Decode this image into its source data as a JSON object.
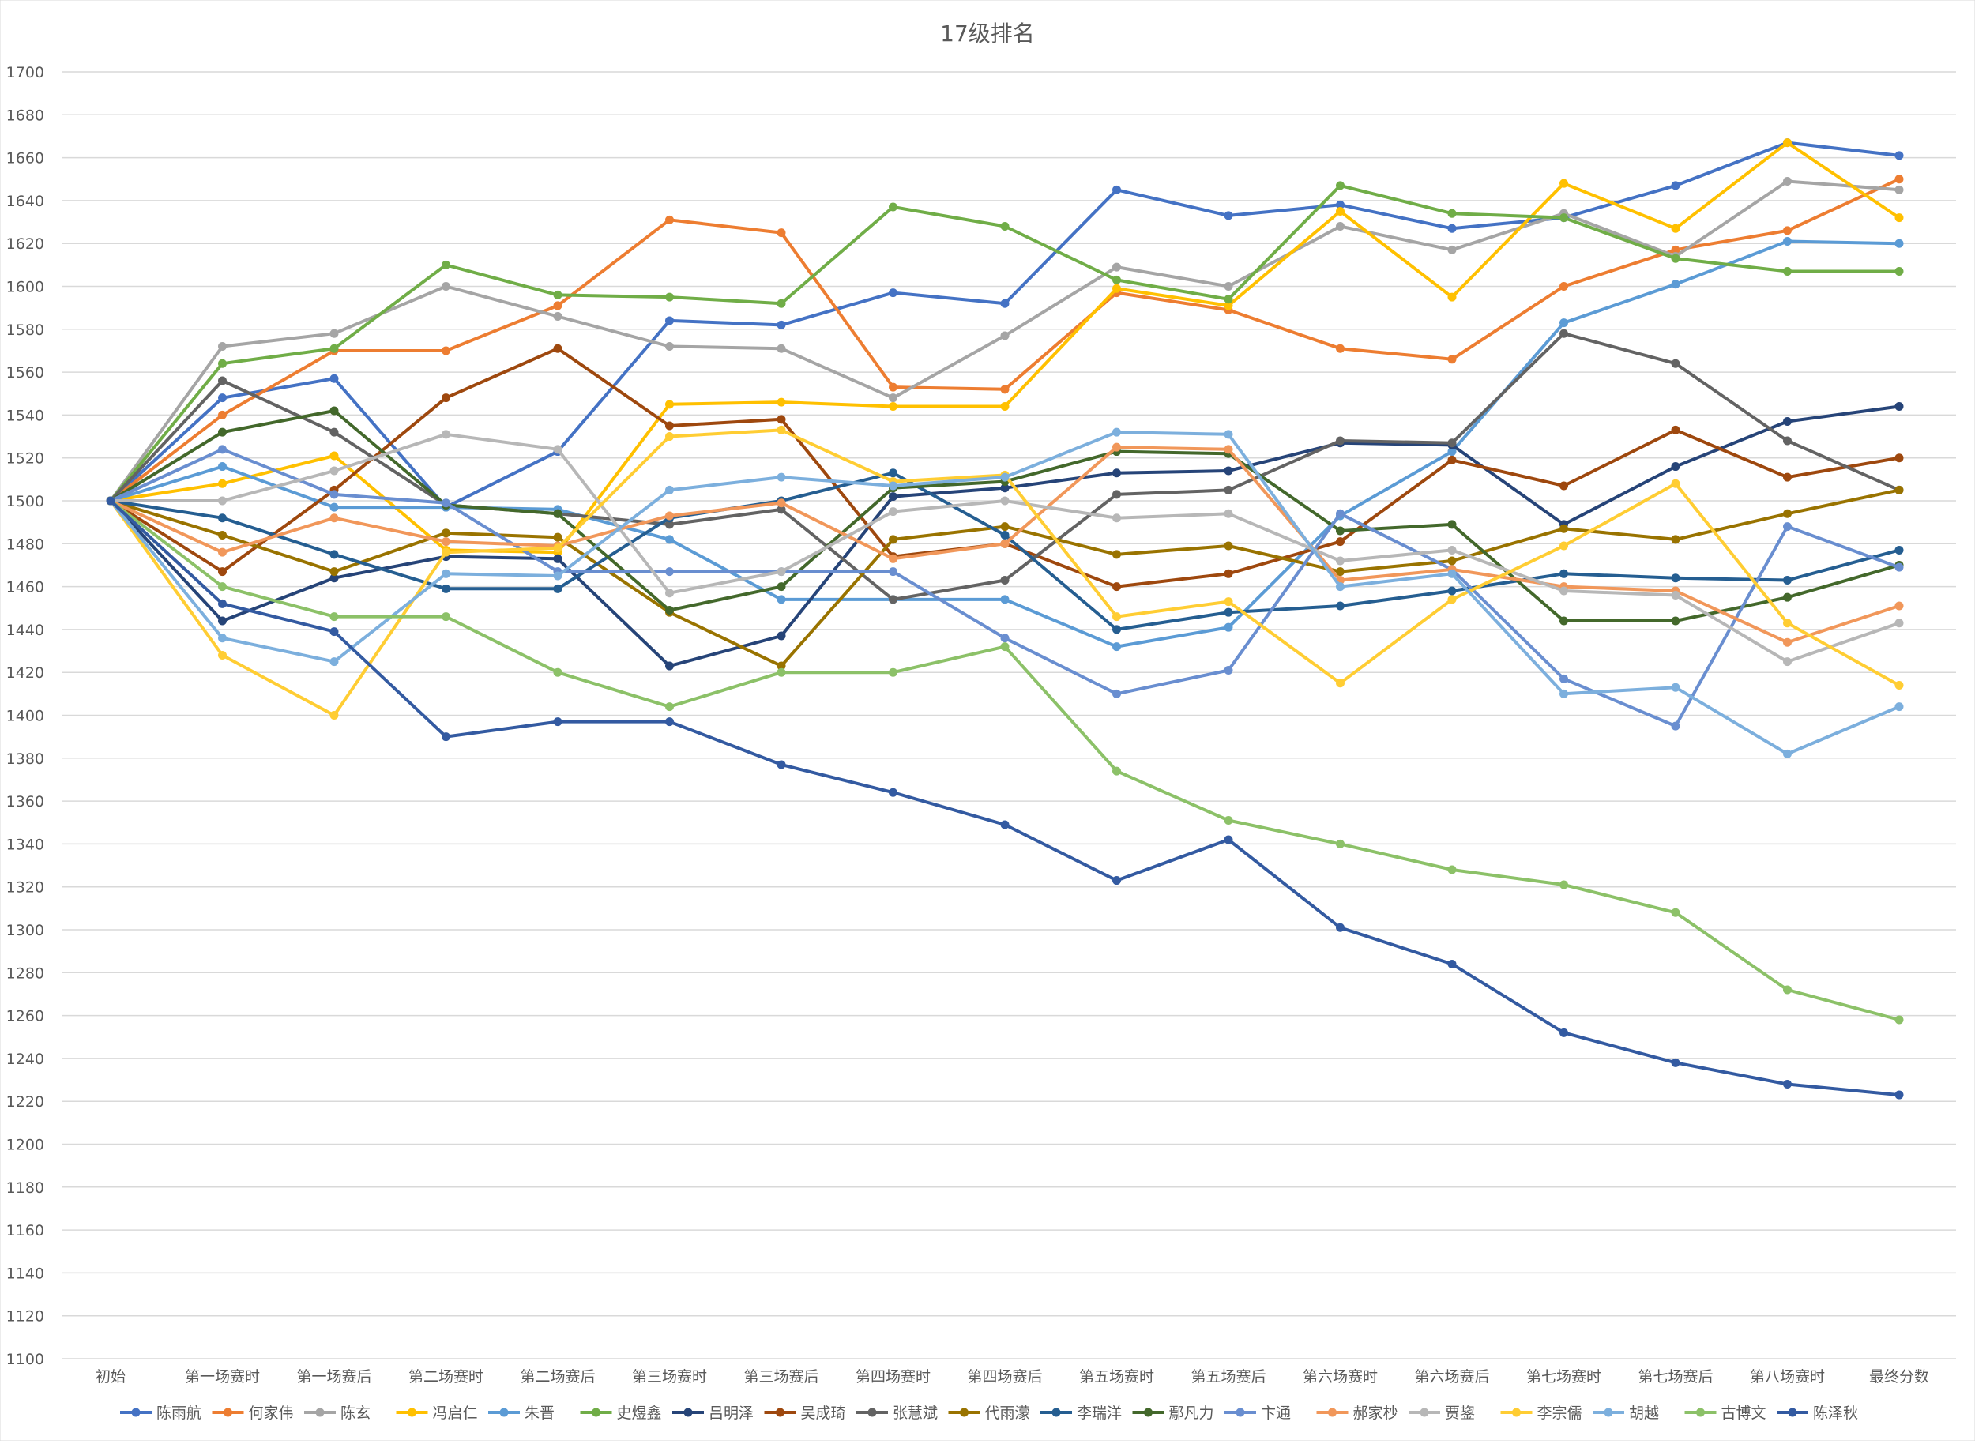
{
  "chart_data": {
    "type": "line",
    "title": "17级排名",
    "xlabel": "",
    "ylabel": "",
    "ylim": [
      1100,
      1700
    ],
    "ytick_step": 20,
    "grid": true,
    "legend_position": "bottom",
    "categories": [
      "初始",
      "第一场赛时",
      "第一场赛后",
      "第二场赛时",
      "第二场赛后",
      "第三场赛时",
      "第三场赛后",
      "第四场赛时",
      "第四场赛后",
      "第五场赛时",
      "第五场赛后",
      "第六场赛时",
      "第六场赛后",
      "第七场赛时",
      "第七场赛后",
      "第八场赛时",
      "最终分数"
    ],
    "series": [
      {
        "name": "陈雨航",
        "color": "#4472C4",
        "values": [
          1500,
          1548,
          1557,
          1497,
          1523,
          1584,
          1582,
          1597,
          1592,
          1645,
          1633,
          1638,
          1627,
          1632,
          1647,
          1667,
          1661
        ]
      },
      {
        "name": "何家伟",
        "color": "#ED7D31",
        "values": [
          1500,
          1540,
          1570,
          1570,
          1591,
          1631,
          1625,
          1553,
          1552,
          1597,
          1589,
          1571,
          1566,
          1600,
          1617,
          1626,
          1650
        ]
      },
      {
        "name": "陈玄",
        "color": "#A5A5A5",
        "values": [
          1500,
          1572,
          1578,
          1600,
          1586,
          1572,
          1571,
          1548,
          1577,
          1609,
          1600,
          1628,
          1617,
          1634,
          1614,
          1649,
          1645
        ]
      },
      {
        "name": "冯启仁",
        "color": "#FFC000",
        "values": [
          1500,
          1508,
          1521,
          1477,
          1476,
          1545,
          1546,
          1544,
          1544,
          1599,
          1591,
          1635,
          1595,
          1648,
          1627,
          1667,
          1632
        ]
      },
      {
        "name": "朱晋",
        "color": "#5B9BD5",
        "values": [
          1500,
          1516,
          1497,
          1497,
          1496,
          1482,
          1454,
          1454,
          1454,
          1432,
          1441,
          1493,
          1523,
          1583,
          1601,
          1621,
          1620
        ]
      },
      {
        "name": "史煜鑫",
        "color": "#70AD47",
        "values": [
          1500,
          1564,
          1571,
          1610,
          1596,
          1595,
          1592,
          1637,
          1628,
          1603,
          1594,
          1647,
          1634,
          1632,
          1613,
          1607,
          1607
        ]
      },
      {
        "name": "吕明泽",
        "color": "#264478",
        "values": [
          1500,
          1444,
          1464,
          1474,
          1473,
          1423,
          1437,
          1502,
          1506,
          1513,
          1514,
          1527,
          1526,
          1489,
          1516,
          1537,
          1544
        ]
      },
      {
        "name": "吴成琦",
        "color": "#9E480E",
        "values": [
          1500,
          1467,
          1505,
          1548,
          1571,
          1535,
          1538,
          1474,
          1480,
          1460,
          1466,
          1481,
          1519,
          1507,
          1533,
          1511,
          1520
        ]
      },
      {
        "name": "张慧斌",
        "color": "#636363",
        "values": [
          1500,
          1556,
          1532,
          1498,
          1494,
          1489,
          1496,
          1454,
          1463,
          1503,
          1505,
          1528,
          1527,
          1578,
          1564,
          1528,
          1505
        ]
      },
      {
        "name": "代雨濛",
        "color": "#997300",
        "values": [
          1500,
          1484,
          1467,
          1485,
          1483,
          1448,
          1423,
          1482,
          1488,
          1475,
          1479,
          1467,
          1472,
          1487,
          1482,
          1494,
          1505
        ]
      },
      {
        "name": "李瑞洋",
        "color": "#255E91",
        "values": [
          1500,
          1492,
          1475,
          1459,
          1459,
          1492,
          1500,
          1513,
          1484,
          1440,
          1448,
          1451,
          1458,
          1466,
          1464,
          1463,
          1477
        ]
      },
      {
        "name": "鄢凡力",
        "color": "#43682B",
        "values": [
          1500,
          1532,
          1542,
          1498,
          1494,
          1449,
          1460,
          1506,
          1509,
          1523,
          1522,
          1486,
          1489,
          1444,
          1444,
          1455,
          1470
        ]
      },
      {
        "name": "卞通",
        "color": "#698ED0",
        "values": [
          1500,
          1524,
          1503,
          1499,
          1467,
          1467,
          1467,
          1467,
          1436,
          1410,
          1421,
          1494,
          1468,
          1417,
          1395,
          1488,
          1469
        ]
      },
      {
        "name": "郝家杪",
        "color": "#F1975A",
        "values": [
          1500,
          1476,
          1492,
          1481,
          1479,
          1493,
          1499,
          1473,
          1480,
          1525,
          1524,
          1463,
          1468,
          1460,
          1458,
          1434,
          1451
        ]
      },
      {
        "name": "贾鋆",
        "color": "#B7B7B7",
        "values": [
          1500,
          1500,
          1514,
          1531,
          1524,
          1457,
          1467,
          1495,
          1500,
          1492,
          1494,
          1472,
          1477,
          1458,
          1456,
          1425,
          1443
        ]
      },
      {
        "name": "李宗儒",
        "color": "#FFCD33",
        "values": [
          1500,
          1428,
          1400,
          1476,
          1478,
          1530,
          1533,
          1509,
          1512,
          1446,
          1453,
          1415,
          1454,
          1479,
          1508,
          1443,
          1414
        ]
      },
      {
        "name": "胡越",
        "color": "#7CAFDD",
        "values": [
          1500,
          1436,
          1425,
          1466,
          1465,
          1505,
          1511,
          1507,
          1511,
          1532,
          1531,
          1460,
          1466,
          1410,
          1413,
          1382,
          1404
        ]
      },
      {
        "name": "古博文",
        "color": "#8CC168",
        "values": [
          1500,
          1460,
          1446,
          1446,
          1420,
          1404,
          1420,
          1420,
          1432,
          1374,
          1351,
          1340,
          1328,
          1321,
          1308,
          1272,
          1258
        ]
      },
      {
        "name": "陈泽秋",
        "color": "#335AA1",
        "values": [
          1500,
          1452,
          1439,
          1390,
          1397,
          1397,
          1377,
          1364,
          1349,
          1323,
          1342,
          1301,
          1284,
          1252,
          1238,
          1228,
          1223
        ]
      }
    ]
  }
}
